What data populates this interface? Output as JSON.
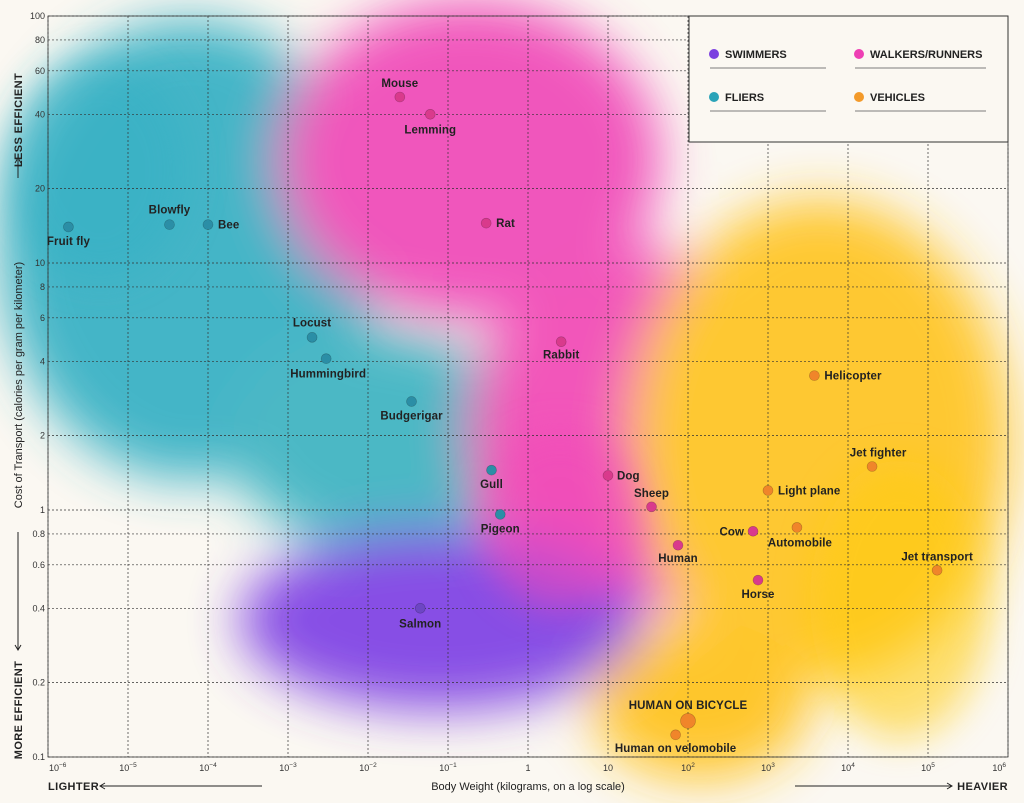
{
  "chart_data": {
    "type": "scatter",
    "x_scale": "log",
    "y_scale": "log",
    "xlabel": "Body Weight (kilograms, on a log scale)",
    "ylabel": "Cost of Transport (calories per gram per kilometer)",
    "xlim": [
      1e-06,
      1000000
    ],
    "ylim": [
      0.1,
      100
    ],
    "x_ticks": [
      {
        "v": 1e-06,
        "base": "10",
        "exp": "−6"
      },
      {
        "v": 1e-05,
        "base": "10",
        "exp": "−5"
      },
      {
        "v": 0.0001,
        "base": "10",
        "exp": "−4"
      },
      {
        "v": 0.001,
        "base": "10",
        "exp": "−3"
      },
      {
        "v": 0.01,
        "base": "10",
        "exp": "−2"
      },
      {
        "v": 0.1,
        "base": "10",
        "exp": "−1"
      },
      {
        "v": 1,
        "base": "1",
        "exp": ""
      },
      {
        "v": 10,
        "base": "10",
        "exp": ""
      },
      {
        "v": 100,
        "base": "10",
        "exp": "2"
      },
      {
        "v": 1000,
        "base": "10",
        "exp": "3"
      },
      {
        "v": 10000,
        "base": "10",
        "exp": "4"
      },
      {
        "v": 100000,
        "base": "10",
        "exp": "5"
      },
      {
        "v": 1000000,
        "base": "10",
        "exp": "6"
      }
    ],
    "y_ticks": [
      {
        "v": 100,
        "label": "100"
      },
      {
        "v": 80,
        "label": "80"
      },
      {
        "v": 60,
        "label": "60"
      },
      {
        "v": 40,
        "label": "40"
      },
      {
        "v": 20,
        "label": "20"
      },
      {
        "v": 10,
        "label": "10"
      },
      {
        "v": 8,
        "label": "8"
      },
      {
        "v": 6,
        "label": "6"
      },
      {
        "v": 4,
        "label": "4"
      },
      {
        "v": 2,
        "label": "2"
      },
      {
        "v": 1,
        "label": "1"
      },
      {
        "v": 0.8,
        "label": "0.8"
      },
      {
        "v": 0.6,
        "label": "0.6"
      },
      {
        "v": 0.4,
        "label": "0.4"
      },
      {
        "v": 0.2,
        "label": "0.2"
      },
      {
        "v": 0.1,
        "label": "0.1"
      }
    ],
    "grid": true,
    "legend_position": "top-right",
    "side_labels": {
      "less_efficient": "LESS EFFICIENT",
      "more_efficient": "MORE EFFICIENT",
      "lighter": "LIGHTER",
      "heavier": "HEAVIER"
    },
    "series": [
      {
        "name": "SWIMMERS",
        "color": "#7b3fe0"
      },
      {
        "name": "WALKERS/RUNNERS",
        "color": "#ee3fb4"
      },
      {
        "name": "FLIERS",
        "color": "#2aa3b8"
      },
      {
        "name": "VEHICLES",
        "color": "#f39a2a"
      }
    ],
    "points": [
      {
        "label": "Fruit fly",
        "x": 1.8e-06,
        "y": 14,
        "group": "FLIERS",
        "color": "#2b8ea6"
      },
      {
        "label": "Blowfly",
        "x": 3.3e-05,
        "y": 14.3,
        "group": "FLIERS",
        "color": "#2b8ea6"
      },
      {
        "label": "Bee",
        "x": 0.0001,
        "y": 14.3,
        "group": "FLIERS",
        "color": "#2b8ea6"
      },
      {
        "label": "Mouse",
        "x": 0.025,
        "y": 47,
        "group": "WALKERS/RUNNERS",
        "color": "#d93a8c"
      },
      {
        "label": "Lemming",
        "x": 0.06,
        "y": 40,
        "group": "WALKERS/RUNNERS",
        "color": "#d93a8c"
      },
      {
        "label": "Rat",
        "x": 0.3,
        "y": 14.5,
        "group": "WALKERS/RUNNERS",
        "color": "#d93a8c"
      },
      {
        "label": "Locust",
        "x": 0.002,
        "y": 5,
        "group": "FLIERS",
        "color": "#2b8ea6"
      },
      {
        "label": "Hummingbird",
        "x": 0.003,
        "y": 4.1,
        "group": "FLIERS",
        "color": "#2b8ea6"
      },
      {
        "label": "Rabbit",
        "x": 2.6,
        "y": 4.8,
        "group": "WALKERS/RUNNERS",
        "color": "#d93a8c"
      },
      {
        "label": "Budgerigar",
        "x": 0.035,
        "y": 2.75,
        "group": "FLIERS",
        "color": "#2b8ea6"
      },
      {
        "label": "Helicopter",
        "x": 3800,
        "y": 3.5,
        "group": "VEHICLES",
        "color": "#f0852a"
      },
      {
        "label": "Gull",
        "x": 0.35,
        "y": 1.45,
        "group": "FLIERS",
        "color": "#2b8ea6"
      },
      {
        "label": "Dog",
        "x": 10,
        "y": 1.38,
        "group": "WALKERS/RUNNERS",
        "color": "#d93a8c"
      },
      {
        "label": "Jet fighter",
        "x": 20000,
        "y": 1.5,
        "group": "VEHICLES",
        "color": "#f0852a"
      },
      {
        "label": "Light plane",
        "x": 1000,
        "y": 1.2,
        "group": "VEHICLES",
        "color": "#f0852a"
      },
      {
        "label": "Sheep",
        "x": 35,
        "y": 1.03,
        "group": "WALKERS/RUNNERS",
        "color": "#d93a8c"
      },
      {
        "label": "Pigeon",
        "x": 0.45,
        "y": 0.96,
        "group": "FLIERS",
        "color": "#2b8ea6"
      },
      {
        "label": "Cow",
        "x": 650,
        "y": 0.82,
        "group": "WALKERS/RUNNERS",
        "color": "#d93a8c"
      },
      {
        "label": "Automobile",
        "x": 2300,
        "y": 0.85,
        "group": "VEHICLES",
        "color": "#f0852a"
      },
      {
        "label": "Human",
        "x": 75,
        "y": 0.72,
        "group": "WALKERS/RUNNERS",
        "color": "#d93a8c"
      },
      {
        "label": "Jet transport",
        "x": 130000,
        "y": 0.57,
        "group": "VEHICLES",
        "color": "#f0852a"
      },
      {
        "label": "Horse",
        "x": 750,
        "y": 0.52,
        "group": "WALKERS/RUNNERS",
        "color": "#d93a8c"
      },
      {
        "label": "Salmon",
        "x": 0.045,
        "y": 0.4,
        "group": "SWIMMERS",
        "color": "#6d46c4"
      },
      {
        "label": "HUMAN ON BICYCLE",
        "x": 100,
        "y": 0.14,
        "group": "VEHICLES",
        "color": "#f0852a",
        "highlight": true
      },
      {
        "label": "Human on velomobile",
        "x": 70,
        "y": 0.123,
        "group": "VEHICLES",
        "color": "#f0852a"
      }
    ]
  }
}
